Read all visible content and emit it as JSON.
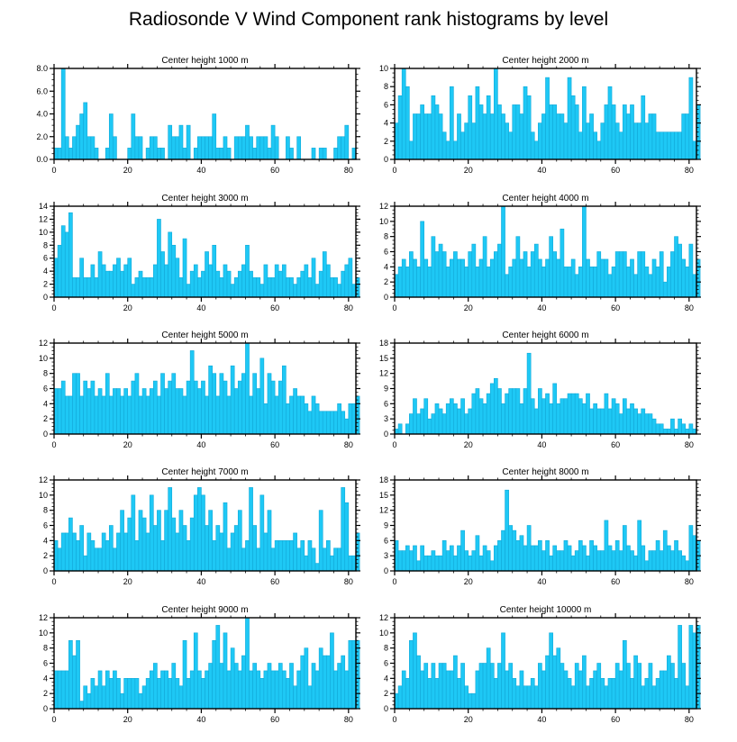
{
  "figure_title": "Radiosonde V Wind Component rank histograms by level",
  "colors": {
    "bar_fill": "#1EC8F5",
    "bar_stroke": "#12A9D8",
    "axis": "#000000"
  },
  "chart_data": [
    {
      "type": "bar",
      "title": "Center height 1000 m",
      "xlim": [
        0,
        82
      ],
      "ylim": [
        0,
        8
      ],
      "xticks": [
        0,
        20,
        40,
        60,
        80
      ],
      "yticks": [
        0,
        2,
        4,
        6,
        8
      ],
      "yticklabels": [
        "0.0",
        "2.0",
        "4.0",
        "6.0",
        "8.0"
      ],
      "values": [
        1,
        1,
        8,
        2,
        1,
        2,
        3,
        4,
        5,
        2,
        2,
        1,
        0,
        0,
        1,
        4,
        2,
        0,
        0,
        0,
        1,
        4,
        2,
        2,
        0,
        1,
        2,
        2,
        1,
        1,
        0,
        3,
        2,
        2,
        3,
        1,
        3,
        0,
        1,
        2,
        2,
        2,
        2,
        4,
        1,
        1,
        2,
        1,
        0,
        2,
        2,
        2,
        3,
        2,
        1,
        2,
        2,
        2,
        1,
        3,
        2,
        0,
        0,
        2,
        1,
        0,
        2,
        0,
        0,
        0,
        1,
        0,
        1,
        1,
        0,
        0,
        1,
        2,
        2,
        3,
        0,
        1,
        0
      ]
    },
    {
      "type": "bar",
      "title": "Center height 2000 m",
      "xlim": [
        0,
        82
      ],
      "ylim": [
        0,
        10
      ],
      "xticks": [
        0,
        20,
        40,
        60,
        80
      ],
      "yticks": [
        0,
        2,
        4,
        6,
        8,
        10
      ],
      "yticklabels": [
        "0",
        "2",
        "4",
        "6",
        "8",
        "10"
      ],
      "values": [
        4,
        7,
        10,
        8,
        2,
        5,
        5,
        6,
        5,
        5,
        7,
        6,
        5,
        3,
        2,
        8,
        2,
        5,
        3,
        4,
        7,
        4,
        8,
        6,
        5,
        7,
        5,
        10,
        6,
        5,
        4,
        3,
        6,
        6,
        5,
        8,
        7,
        3,
        2,
        4,
        5,
        9,
        6,
        6,
        5,
        5,
        4,
        9,
        7,
        6,
        3,
        8,
        4,
        5,
        3,
        2,
        4,
        6,
        8,
        6,
        4,
        3,
        6,
        5,
        6,
        4,
        4,
        7,
        4,
        5,
        5,
        3,
        3,
        3,
        3,
        3,
        3,
        3,
        5,
        5,
        9,
        2,
        6
      ]
    },
    {
      "type": "bar",
      "title": "Center height 3000 m",
      "xlim": [
        0,
        82
      ],
      "ylim": [
        0,
        14
      ],
      "xticks": [
        0,
        20,
        40,
        60,
        80
      ],
      "yticks": [
        0,
        2,
        4,
        6,
        8,
        10,
        12,
        14
      ],
      "yticklabels": [
        "0",
        "2",
        "4",
        "6",
        "8",
        "10",
        "12",
        "14"
      ],
      "values": [
        6,
        8,
        11,
        10,
        13,
        3,
        3,
        6,
        3,
        3,
        5,
        3,
        7,
        5,
        4,
        4,
        5,
        6,
        4,
        5,
        6,
        2,
        3,
        4,
        3,
        3,
        3,
        5,
        12,
        7,
        5,
        10,
        8,
        6,
        3,
        9,
        2,
        4,
        5,
        3,
        4,
        7,
        5,
        8,
        4,
        3,
        5,
        4,
        2,
        3,
        4,
        5,
        8,
        4,
        3,
        3,
        2,
        5,
        3,
        3,
        5,
        4,
        5,
        3,
        3,
        2,
        3,
        4,
        5,
        3,
        6,
        2,
        4,
        7,
        5,
        3,
        3,
        2,
        4,
        5,
        6,
        2,
        3
      ]
    },
    {
      "type": "bar",
      "title": "Center height 4000 m",
      "xlim": [
        0,
        82
      ],
      "ylim": [
        0,
        12
      ],
      "xticks": [
        0,
        20,
        40,
        60,
        80
      ],
      "yticks": [
        0,
        2,
        4,
        6,
        8,
        10,
        12
      ],
      "yticklabels": [
        "0",
        "2",
        "4",
        "6",
        "8",
        "10",
        "12"
      ],
      "values": [
        3,
        4,
        5,
        4,
        6,
        5,
        4,
        10,
        5,
        4,
        8,
        6,
        7,
        6,
        4,
        5,
        6,
        5,
        5,
        4,
        6,
        7,
        4,
        5,
        8,
        4,
        5,
        6,
        7,
        12,
        3,
        4,
        5,
        8,
        5,
        6,
        4,
        6,
        7,
        5,
        4,
        5,
        8,
        6,
        5,
        9,
        4,
        4,
        5,
        3,
        4,
        12,
        5,
        4,
        4,
        6,
        5,
        5,
        3,
        4,
        6,
        6,
        6,
        4,
        5,
        3,
        6,
        6,
        4,
        3,
        5,
        4,
        6,
        2,
        4,
        6,
        8,
        7,
        5,
        4,
        7,
        3,
        5
      ]
    },
    {
      "type": "bar",
      "title": "Center height 5000 m",
      "xlim": [
        0,
        82
      ],
      "ylim": [
        0,
        12
      ],
      "xticks": [
        0,
        20,
        40,
        60,
        80
      ],
      "yticks": [
        0,
        2,
        4,
        6,
        8,
        10,
        12
      ],
      "yticklabels": [
        "0",
        "2",
        "4",
        "6",
        "8",
        "10",
        "12"
      ],
      "values": [
        6,
        6,
        7,
        5,
        5,
        8,
        8,
        5,
        7,
        6,
        7,
        5,
        6,
        5,
        8,
        5,
        6,
        6,
        5,
        6,
        5,
        7,
        8,
        5,
        6,
        5,
        6,
        7,
        5,
        8,
        6,
        7,
        8,
        6,
        6,
        5,
        7,
        11,
        7,
        6,
        7,
        5,
        9,
        8,
        5,
        8,
        7,
        5,
        9,
        6,
        7,
        8,
        12,
        5,
        8,
        6,
        10,
        4,
        8,
        7,
        5,
        7,
        9,
        4,
        5,
        6,
        5,
        5,
        4,
        3,
        5,
        4,
        3,
        3,
        3,
        3,
        3,
        4,
        3,
        2,
        4,
        4,
        5
      ]
    },
    {
      "type": "bar",
      "title": "Center height 6000 m",
      "xlim": [
        0,
        82
      ],
      "ylim": [
        0,
        18
      ],
      "xticks": [
        0,
        20,
        40,
        60,
        80
      ],
      "yticks": [
        0,
        3,
        6,
        9,
        12,
        15,
        18
      ],
      "yticklabels": [
        "0",
        "3",
        "6",
        "9",
        "12",
        "15",
        "18"
      ],
      "values": [
        1,
        2,
        0,
        2,
        4,
        7,
        4,
        5,
        7,
        3,
        4,
        6,
        5,
        4,
        6,
        7,
        6,
        5,
        7,
        4,
        5,
        8,
        9,
        7,
        6,
        8,
        10,
        11,
        9,
        6,
        8,
        9,
        9,
        9,
        6,
        9,
        16,
        7,
        5,
        9,
        7,
        8,
        6,
        10,
        6,
        7,
        7,
        8,
        8,
        8,
        7,
        6,
        8,
        5,
        6,
        5,
        5,
        8,
        5,
        7,
        6,
        4,
        7,
        5,
        6,
        5,
        4,
        5,
        4,
        4,
        3,
        2,
        2,
        1,
        1,
        3,
        1,
        3,
        2,
        1,
        2,
        1,
        0
      ]
    },
    {
      "type": "bar",
      "title": "Center height 7000 m",
      "xlim": [
        0,
        82
      ],
      "ylim": [
        0,
        12
      ],
      "xticks": [
        0,
        20,
        40,
        60,
        80
      ],
      "yticks": [
        0,
        2,
        4,
        6,
        8,
        10,
        12
      ],
      "yticklabels": [
        "0",
        "2",
        "4",
        "6",
        "8",
        "10",
        "12"
      ],
      "values": [
        4,
        3,
        5,
        5,
        7,
        5,
        4,
        6,
        2,
        5,
        4,
        3,
        3,
        5,
        4,
        6,
        3,
        5,
        8,
        5,
        7,
        10,
        4,
        8,
        7,
        5,
        10,
        6,
        8,
        4,
        8,
        11,
        7,
        5,
        8,
        6,
        4,
        7,
        10,
        11,
        10,
        6,
        8,
        4,
        6,
        5,
        9,
        3,
        5,
        6,
        8,
        3,
        4,
        11,
        6,
        3,
        10,
        5,
        8,
        3,
        4,
        4,
        4,
        4,
        4,
        5,
        3,
        4,
        2,
        4,
        3,
        1,
        8,
        3,
        4,
        2,
        3,
        3,
        11,
        9,
        2,
        2,
        5
      ]
    },
    {
      "type": "bar",
      "title": "Center height 8000 m",
      "xlim": [
        0,
        82
      ],
      "ylim": [
        0,
        18
      ],
      "xticks": [
        0,
        20,
        40,
        60,
        80
      ],
      "yticks": [
        0,
        3,
        6,
        9,
        12,
        15,
        18
      ],
      "yticklabels": [
        "0",
        "3",
        "6",
        "9",
        "12",
        "15",
        "18"
      ],
      "values": [
        6,
        4,
        4,
        5,
        4,
        5,
        2,
        5,
        3,
        3,
        4,
        3,
        3,
        6,
        4,
        5,
        3,
        5,
        8,
        4,
        3,
        4,
        7,
        3,
        5,
        4,
        2,
        5,
        6,
        8,
        16,
        9,
        8,
        6,
        7,
        5,
        9,
        5,
        5,
        6,
        4,
        6,
        3,
        5,
        4,
        4,
        6,
        5,
        3,
        4,
        6,
        5,
        3,
        6,
        5,
        4,
        4,
        10,
        5,
        4,
        6,
        4,
        9,
        5,
        4,
        3,
        10,
        5,
        2,
        4,
        4,
        6,
        4,
        8,
        5,
        4,
        6,
        4,
        3,
        2,
        9,
        7,
        6
      ]
    },
    {
      "type": "bar",
      "title": "Center height 9000 m",
      "xlim": [
        0,
        82
      ],
      "ylim": [
        0,
        12
      ],
      "xticks": [
        0,
        20,
        40,
        60,
        80
      ],
      "yticks": [
        0,
        2,
        4,
        6,
        8,
        10,
        12
      ],
      "yticklabels": [
        "0",
        "2",
        "4",
        "6",
        "8",
        "10",
        "12"
      ],
      "values": [
        5,
        5,
        5,
        5,
        9,
        7,
        9,
        1,
        3,
        2,
        4,
        3,
        5,
        3,
        5,
        4,
        5,
        4,
        2,
        4,
        4,
        4,
        4,
        2,
        3,
        4,
        5,
        6,
        4,
        5,
        5,
        4,
        6,
        4,
        3,
        9,
        4,
        5,
        10,
        5,
        4,
        5,
        6,
        9,
        11,
        6,
        10,
        5,
        8,
        6,
        5,
        7,
        12,
        5,
        6,
        5,
        4,
        5,
        6,
        5,
        5,
        6,
        5,
        4,
        6,
        3,
        5,
        7,
        8,
        3,
        6,
        5,
        8,
        7,
        7,
        10,
        5,
        6,
        7,
        5,
        9,
        9,
        9
      ]
    },
    {
      "type": "bar",
      "title": "Center height 10000 m",
      "xlim": [
        0,
        82
      ],
      "ylim": [
        0,
        12
      ],
      "xticks": [
        0,
        20,
        40,
        60,
        80
      ],
      "yticks": [
        0,
        2,
        4,
        6,
        8,
        10,
        12
      ],
      "yticklabels": [
        "0",
        "2",
        "4",
        "6",
        "8",
        "10",
        "12"
      ],
      "values": [
        2,
        3,
        5,
        4,
        9,
        10,
        7,
        5,
        6,
        4,
        6,
        4,
        6,
        6,
        5,
        5,
        7,
        4,
        6,
        3,
        2,
        2,
        5,
        6,
        6,
        8,
        6,
        4,
        6,
        10,
        5,
        6,
        4,
        3,
        5,
        3,
        3,
        4,
        3,
        6,
        5,
        7,
        10,
        7,
        8,
        6,
        5,
        4,
        3,
        6,
        5,
        7,
        3,
        4,
        5,
        6,
        4,
        3,
        4,
        4,
        6,
        5,
        9,
        6,
        4,
        7,
        6,
        3,
        4,
        6,
        3,
        4,
        5,
        5,
        7,
        6,
        4,
        11,
        6,
        3,
        11,
        10,
        11
      ]
    }
  ]
}
